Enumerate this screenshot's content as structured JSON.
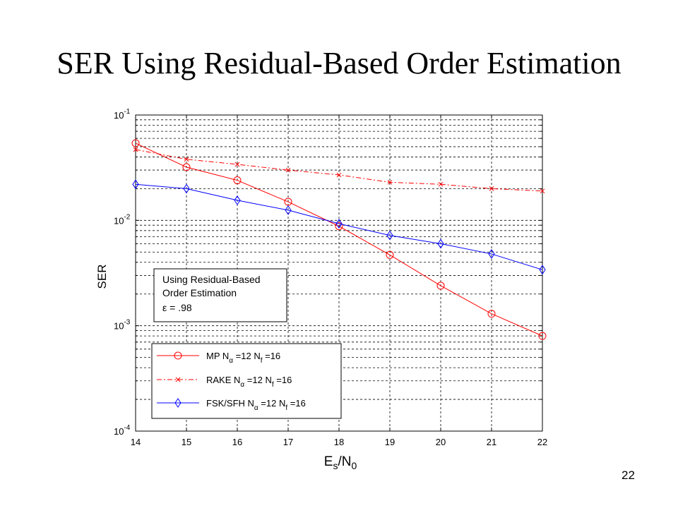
{
  "slide": {
    "title": "SER Using Residual-Based Order Estimation",
    "page_number": "22"
  },
  "chart_data": {
    "type": "line",
    "x_axis": {
      "label_main": "E",
      "label_sub1": "s",
      "label_mid": "/N",
      "label_sub2": "0",
      "ticks": [
        "14",
        "15",
        "16",
        "17",
        "18",
        "19",
        "20",
        "21",
        "22"
      ],
      "lim": [
        14,
        22
      ]
    },
    "y_axis": {
      "label": "SER",
      "scale": "log",
      "lim": [
        0.0001,
        0.1
      ],
      "ticks": [
        {
          "value": 0.1,
          "base": "10",
          "exp": "-1"
        },
        {
          "value": 0.01,
          "base": "10",
          "exp": "-2"
        },
        {
          "value": 0.001,
          "base": "10",
          "exp": "-3"
        },
        {
          "value": 0.0001,
          "base": "10",
          "exp": "-4"
        }
      ]
    },
    "grid": true,
    "x": [
      14,
      15,
      16,
      17,
      18,
      19,
      20,
      21,
      22
    ],
    "series": [
      {
        "name": "MP",
        "color": "#ff0000",
        "marker": "circle",
        "dash": "solid",
        "values": [
          0.054,
          0.032,
          0.024,
          0.015,
          0.0088,
          0.0047,
          0.0024,
          0.0013,
          0.0008
        ]
      },
      {
        "name": "RAKE",
        "color": "#ff0000",
        "marker": "x",
        "dash": "dashdot",
        "values": [
          0.047,
          0.038,
          0.034,
          0.03,
          0.027,
          0.023,
          0.022,
          0.02,
          0.019
        ]
      },
      {
        "name": "FSK/SFH",
        "color": "#0000ff",
        "marker": "diamond",
        "dash": "solid",
        "values": [
          0.022,
          0.02,
          0.0155,
          0.0125,
          0.0093,
          0.0072,
          0.006,
          0.0048,
          0.0034
        ]
      }
    ],
    "legend": {
      "placement": "bottom-left",
      "entries": [
        {
          "series": "MP",
          "prefix": "MP N",
          "mid": "=12 N",
          "sub2": "f",
          "suffix": "=16"
        },
        {
          "series": "RAKE",
          "prefix": "RAKE N",
          "mid": "=12 N",
          "sub2": "f",
          "suffix": "=16"
        },
        {
          "series": "FSK/SFH",
          "prefix": "FSK/SFH N",
          "mid": "=12 N",
          "sub2": "f",
          "suffix": "=16"
        }
      ],
      "alpha_symbol": "α"
    },
    "annotation": {
      "lines": [
        "Using Residual-Based",
        "Order Estimation"
      ],
      "eps_symbol": "ε",
      "eps_text": " = .98"
    }
  }
}
